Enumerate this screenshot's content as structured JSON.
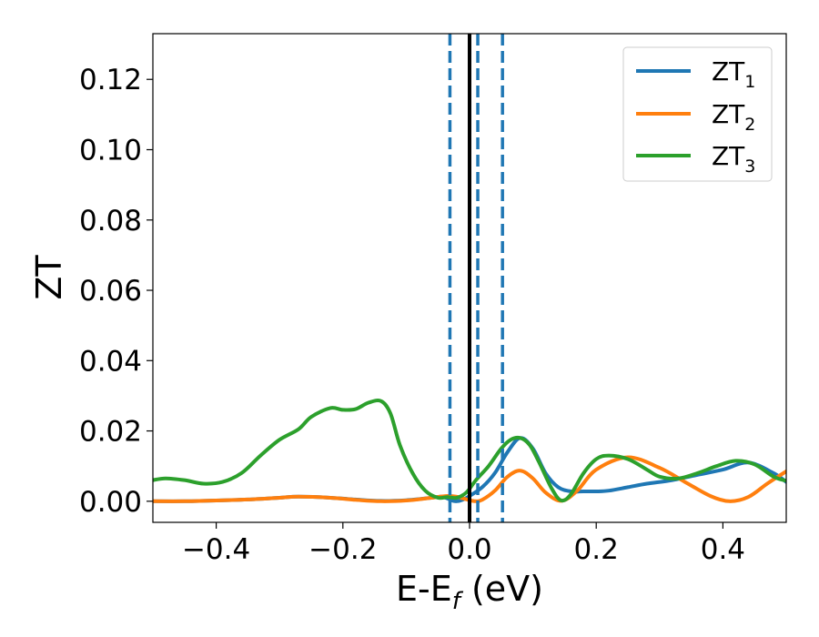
{
  "chart_data": {
    "type": "line",
    "xlabel_main": "E-E",
    "xlabel_sub": "f",
    "xlabel_unit": " (eV)",
    "ylabel": "ZT",
    "xlim": [
      -0.5,
      0.5
    ],
    "ylim": [
      -0.006,
      0.133
    ],
    "xticks": [
      -0.4,
      -0.2,
      0.0,
      0.2,
      0.4
    ],
    "xtick_labels": [
      "−0.4",
      "−0.2",
      "0.0",
      "0.2",
      "0.4"
    ],
    "yticks": [
      0.0,
      0.02,
      0.04,
      0.06,
      0.08,
      0.1,
      0.12
    ],
    "ytick_labels": [
      "0.00",
      "0.02",
      "0.04",
      "0.06",
      "0.08",
      "0.10",
      "0.12"
    ],
    "legend_position": "top-right",
    "vlines": [
      {
        "x": 0.0,
        "style": "solid",
        "color": "#000000"
      },
      {
        "x": -0.031,
        "style": "dashed",
        "color": "#1f77b4"
      },
      {
        "x": 0.013,
        "style": "dashed",
        "color": "#1f77b4"
      },
      {
        "x": 0.052,
        "style": "dashed",
        "color": "#1f77b4"
      }
    ],
    "series": [
      {
        "name": "ZT",
        "name_sub": "1",
        "color": "#1f77b4",
        "x": [
          -0.5,
          -0.45,
          -0.4,
          -0.35,
          -0.3,
          -0.27,
          -0.22,
          -0.18,
          -0.14,
          -0.1,
          -0.06,
          -0.045,
          -0.035,
          -0.028,
          -0.02,
          -0.01,
          0.0,
          0.02,
          0.04,
          0.06,
          0.08,
          0.1,
          0.12,
          0.14,
          0.16,
          0.18,
          0.2,
          0.22,
          0.25,
          0.28,
          0.32,
          0.36,
          0.4,
          0.44,
          0.48,
          0.5
        ],
        "y": [
          0.0,
          0.0,
          0.0002,
          0.0005,
          0.001,
          0.0013,
          0.001,
          0.0005,
          0.0001,
          0.0003,
          0.001,
          0.0013,
          0.0008,
          0.0002,
          0.0,
          0.0005,
          0.0015,
          0.004,
          0.008,
          0.014,
          0.018,
          0.015,
          0.008,
          0.004,
          0.0028,
          0.0028,
          0.0028,
          0.003,
          0.004,
          0.005,
          0.006,
          0.0075,
          0.009,
          0.011,
          0.008,
          0.0055
        ]
      },
      {
        "name": "ZT",
        "name_sub": "2",
        "color": "#ff7f0e",
        "x": [
          -0.5,
          -0.45,
          -0.4,
          -0.35,
          -0.3,
          -0.27,
          -0.22,
          -0.18,
          -0.14,
          -0.1,
          -0.06,
          -0.035,
          -0.02,
          -0.01,
          0.0,
          0.01,
          0.02,
          0.04,
          0.06,
          0.08,
          0.1,
          0.12,
          0.145,
          0.17,
          0.2,
          0.25,
          0.3,
          0.34,
          0.38,
          0.41,
          0.44,
          0.47,
          0.5
        ],
        "y": [
          0.0,
          0.0,
          0.0002,
          0.0005,
          0.001,
          0.0013,
          0.001,
          0.0004,
          0.0,
          0.0002,
          0.001,
          0.0015,
          0.0013,
          0.0008,
          0.0003,
          0.0,
          0.0004,
          0.003,
          0.007,
          0.0087,
          0.0065,
          0.0025,
          0.0001,
          0.003,
          0.009,
          0.0125,
          0.0095,
          0.0055,
          0.0015,
          0.0,
          0.0012,
          0.005,
          0.0085
        ]
      },
      {
        "name": "ZT",
        "name_sub": "3",
        "color": "#2ca02c",
        "x": [
          -0.5,
          -0.48,
          -0.45,
          -0.42,
          -0.39,
          -0.36,
          -0.33,
          -0.3,
          -0.27,
          -0.25,
          -0.22,
          -0.2,
          -0.18,
          -0.16,
          -0.14,
          -0.125,
          -0.11,
          -0.09,
          -0.07,
          -0.05,
          -0.035,
          -0.02,
          -0.005,
          0.01,
          0.03,
          0.05,
          0.065,
          0.08,
          0.095,
          0.11,
          0.13,
          0.145,
          0.16,
          0.18,
          0.2,
          0.22,
          0.25,
          0.28,
          0.3,
          0.33,
          0.36,
          0.39,
          0.42,
          0.45,
          0.48,
          0.5
        ],
        "y": [
          0.006,
          0.0065,
          0.006,
          0.005,
          0.0055,
          0.008,
          0.013,
          0.0175,
          0.0205,
          0.024,
          0.0265,
          0.026,
          0.0262,
          0.028,
          0.0285,
          0.025,
          0.016,
          0.008,
          0.003,
          0.001,
          0.0012,
          0.001,
          0.0025,
          0.006,
          0.01,
          0.015,
          0.0175,
          0.018,
          0.016,
          0.011,
          0.0035,
          0.0002,
          0.002,
          0.008,
          0.012,
          0.013,
          0.012,
          0.009,
          0.007,
          0.0065,
          0.008,
          0.01,
          0.0115,
          0.0105,
          0.007,
          0.0058
        ]
      }
    ]
  }
}
